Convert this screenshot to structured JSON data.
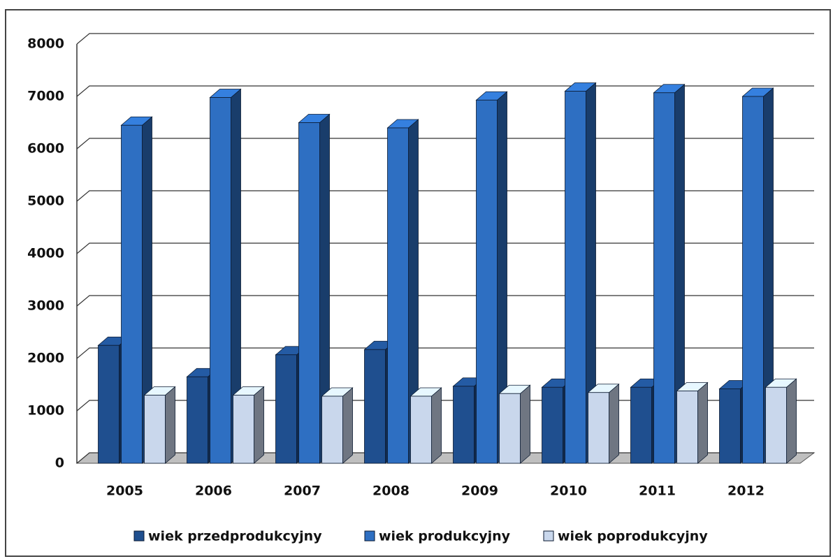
{
  "chart_data": {
    "type": "bar3d",
    "categories": [
      "2005",
      "2006",
      "2007",
      "2008",
      "2009",
      "2010",
      "2011",
      "2012"
    ],
    "series": [
      {
        "name": "wiek przedprodukcyjny",
        "color": "#1f4f8f",
        "values": [
          2250,
          1650,
          2070,
          2170,
          1470,
          1450,
          1450,
          1420
        ]
      },
      {
        "name": "wiek produkcyjny",
        "color": "#2e6fc2",
        "values": [
          6450,
          6980,
          6500,
          6400,
          6930,
          7100,
          7070,
          7000
        ]
      },
      {
        "name": "wiek poprodukcyjny",
        "color": "#c9d7ec",
        "values": [
          1300,
          1300,
          1280,
          1280,
          1330,
          1350,
          1380,
          1450
        ]
      }
    ],
    "ylim": [
      0,
      8000
    ],
    "yticks": [
      0,
      1000,
      2000,
      3000,
      4000,
      5000,
      6000,
      7000,
      8000
    ],
    "grid": true,
    "legend": "bottom"
  }
}
